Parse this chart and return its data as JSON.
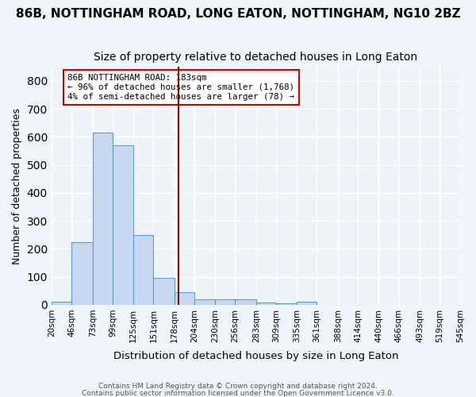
{
  "title": "86B, NOTTINGHAM ROAD, LONG EATON, NOTTINGHAM, NG10 2BZ",
  "subtitle": "Size of property relative to detached houses in Long Eaton",
  "xlabel": "Distribution of detached houses by size in Long Eaton",
  "ylabel": "Number of detached properties",
  "bin_labels": [
    "20sqm",
    "46sqm",
    "73sqm",
    "99sqm",
    "125sqm",
    "151sqm",
    "178sqm",
    "204sqm",
    "230sqm",
    "256sqm",
    "283sqm",
    "309sqm",
    "335sqm",
    "361sqm",
    "388sqm",
    "414sqm",
    "440sqm",
    "466sqm",
    "493sqm",
    "519sqm",
    "545sqm"
  ],
  "bin_edges": [
    20,
    46,
    73,
    99,
    125,
    151,
    178,
    204,
    230,
    256,
    283,
    309,
    335,
    361,
    388,
    414,
    440,
    466,
    493,
    519,
    545
  ],
  "bar_heights": [
    10,
    225,
    615,
    570,
    250,
    95,
    45,
    20,
    20,
    20,
    7,
    5,
    10,
    0,
    0,
    0,
    0,
    0,
    0,
    0
  ],
  "bar_color": "#c6d9f0",
  "bar_edge_color": "#5b9bd5",
  "vline_x": 183,
  "vline_color": "#8b0000",
  "annotation_box_text": "86B NOTTINGHAM ROAD: 183sqm\n← 96% of detached houses are smaller (1,768)\n4% of semi-detached houses are larger (78) →",
  "ylim": [
    0,
    850
  ],
  "yticks": [
    0,
    100,
    200,
    300,
    400,
    500,
    600,
    700,
    800
  ],
  "background_color": "#eef3fa",
  "fig_background_color": "#f0f4fb",
  "grid_color": "#ffffff",
  "footnote1": "Contains HM Land Registry data © Crown copyright and database right 2024.",
  "footnote2": "Contains public sector information licensed under the Open Government Licence v3.0.",
  "title_fontsize": 11,
  "subtitle_fontsize": 10
}
